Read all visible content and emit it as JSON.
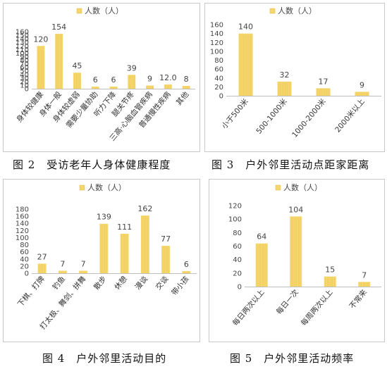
{
  "chart_data": [
    {
      "type": "bar",
      "legend": "人数（人）",
      "categories": [
        "身体较健康",
        "身体一般",
        "身体较虚弱",
        "需要少量协助",
        "听力下降",
        "腿关节疼",
        "三高·心脑血管疾病",
        "普通慢性疾病",
        "其他"
      ],
      "values": [
        120,
        154,
        45,
        6,
        6,
        39,
        9,
        12.0,
        8
      ],
      "value_labels": [
        "120",
        "154",
        "45",
        "6",
        "6",
        "39",
        "9",
        "12.0",
        "8"
      ],
      "ylim": [
        0,
        160
      ],
      "yticks": [
        0,
        10,
        20,
        30,
        40,
        50,
        60,
        70,
        80,
        90,
        100,
        110,
        120,
        130,
        140,
        150,
        160
      ],
      "color": "#f5d76e",
      "caption": "图 2　受访老年人身体健康程度"
    },
    {
      "type": "bar",
      "legend": "人数（人）",
      "categories": [
        "小于500米",
        "500-1000米",
        "1000-2000米",
        "2000米以上"
      ],
      "values": [
        140,
        32,
        17,
        9
      ],
      "value_labels": [
        "140",
        "32",
        "17",
        "9"
      ],
      "ylim": [
        0,
        160
      ],
      "yticks": [
        0,
        20,
        40,
        60,
        80,
        100,
        120,
        140,
        160
      ],
      "color": "#f5d76e",
      "caption": "图 3　户外邻里活动点距家距离"
    },
    {
      "type": "bar",
      "legend": "人数（人）",
      "categories": [
        "下棋、打牌",
        "钓鱼",
        "打太极、舞剑、拼舞",
        "散步",
        "休憩",
        "漫谈",
        "交谈",
        "带小孩"
      ],
      "values": [
        27,
        7,
        7,
        139,
        111,
        162,
        77,
        6
      ],
      "value_labels": [
        "27",
        "7",
        "7",
        "139",
        "111",
        "162",
        "77",
        "6"
      ],
      "ylim": [
        0,
        180
      ],
      "yticks": [
        0,
        20,
        40,
        60,
        80,
        100,
        120,
        140,
        160,
        180
      ],
      "color": "#f5d76e",
      "caption": "图 4　户外邻里活动目的"
    },
    {
      "type": "bar",
      "legend": "人数（人）",
      "categories": [
        "每日两次以上",
        "每日一次",
        "每周两次以上",
        "不常来"
      ],
      "values": [
        64,
        104,
        15,
        7
      ],
      "value_labels": [
        "64",
        "104",
        "15",
        "7"
      ],
      "ylim": [
        0,
        120
      ],
      "yticks": [
        0,
        20,
        40,
        60,
        80,
        100,
        120
      ],
      "color": "#f5d76e",
      "caption": "图 5　户外邻里活动频率"
    }
  ]
}
